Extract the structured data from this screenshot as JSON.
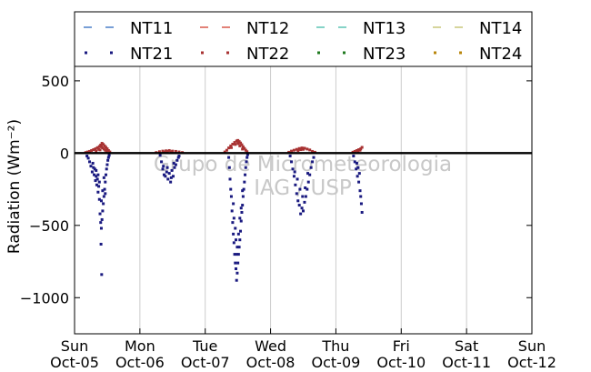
{
  "chart_data": {
    "type": "scatter",
    "title": "",
    "xlabel": "",
    "ylabel": "Radiation (Wm⁻²)",
    "ylim": [
      -1250,
      600
    ],
    "yticks": [
      500,
      0,
      -500,
      -1000
    ],
    "ytick_labels": [
      "500",
      "0",
      "−500",
      "−1000"
    ],
    "x_ticks": [
      {
        "top": "Sun",
        "bottom": "Oct-05"
      },
      {
        "top": "Mon",
        "bottom": "Oct-06"
      },
      {
        "top": "Tue",
        "bottom": "Oct-07"
      },
      {
        "top": "Wed",
        "bottom": "Oct-08"
      },
      {
        "top": "Thu",
        "bottom": "Oct-09"
      },
      {
        "top": "Fri",
        "bottom": "Oct-10"
      },
      {
        "top": "Sat",
        "bottom": "Oct-11"
      },
      {
        "top": "Sun",
        "bottom": "Oct-12"
      }
    ],
    "xlim_days": [
      0,
      7
    ],
    "grid": "vertical",
    "zero_line": true,
    "legend": {
      "placement": "top",
      "columns": 4,
      "entries": [
        {
          "name": "NT11",
          "marker": "dash",
          "color": "#4a7fc9"
        },
        {
          "name": "NT12",
          "marker": "dash",
          "color": "#d9584a"
        },
        {
          "name": "NT13",
          "marker": "dash",
          "color": "#5cc4b4"
        },
        {
          "name": "NT14",
          "marker": "dash",
          "color": "#c9c77a"
        },
        {
          "name": "NT21",
          "marker": "dot",
          "color": "#1a1a80"
        },
        {
          "name": "NT22",
          "marker": "dot",
          "color": "#a83232"
        },
        {
          "name": "NT23",
          "marker": "dot",
          "color": "#1f7a1f"
        },
        {
          "name": "NT24",
          "marker": "dot",
          "color": "#b8860b"
        }
      ]
    },
    "watermark": [
      "Grupo de Micrometeorologia",
      "IAG / USP"
    ],
    "series": [
      {
        "name": "NT21",
        "color": "#1a1a80",
        "points": [
          [
            0.19,
            -20
          ],
          [
            0.21,
            -35
          ],
          [
            0.23,
            -60
          ],
          [
            0.25,
            -90
          ],
          [
            0.27,
            -130
          ],
          [
            0.28,
            -70
          ],
          [
            0.3,
            -150
          ],
          [
            0.31,
            -110
          ],
          [
            0.32,
            -190
          ],
          [
            0.33,
            -160
          ],
          [
            0.34,
            -220
          ],
          [
            0.35,
            -180
          ],
          [
            0.36,
            -270
          ],
          [
            0.37,
            -230
          ],
          [
            0.38,
            -320
          ],
          [
            0.39,
            -420
          ],
          [
            0.4,
            -480
          ],
          [
            0.405,
            -630
          ],
          [
            0.41,
            -520
          ],
          [
            0.415,
            -840
          ],
          [
            0.42,
            -460
          ],
          [
            0.43,
            -400
          ],
          [
            0.44,
            -350
          ],
          [
            0.45,
            -300
          ],
          [
            0.46,
            -250
          ],
          [
            0.47,
            -200
          ],
          [
            0.48,
            -150
          ],
          [
            0.49,
            -110
          ],
          [
            0.5,
            -80
          ],
          [
            0.51,
            -50
          ],
          [
            0.52,
            -30
          ],
          [
            0.53,
            -15
          ],
          [
            0.45,
            -170
          ],
          [
            0.43,
            -260
          ],
          [
            0.38,
            -200
          ],
          [
            0.36,
            -150
          ],
          [
            0.33,
            -120
          ],
          [
            0.29,
            -100
          ],
          [
            0.41,
            -330
          ],
          [
            0.47,
            -280
          ],
          [
            1.31,
            -15
          ],
          [
            1.33,
            -60
          ],
          [
            1.35,
            -110
          ],
          [
            1.37,
            -150
          ],
          [
            1.39,
            -160
          ],
          [
            1.41,
            -130
          ],
          [
            1.43,
            -180
          ],
          [
            1.45,
            -140
          ],
          [
            1.47,
            -200
          ],
          [
            1.49,
            -120
          ],
          [
            1.51,
            -160
          ],
          [
            1.53,
            -100
          ],
          [
            1.55,
            -80
          ],
          [
            1.57,
            -50
          ],
          [
            1.59,
            -30
          ],
          [
            1.36,
            -90
          ],
          [
            1.42,
            -100
          ],
          [
            1.48,
            -170
          ],
          [
            1.52,
            -70
          ],
          [
            1.6,
            -20
          ],
          [
            2.36,
            -30
          ],
          [
            2.37,
            -100
          ],
          [
            2.38,
            -180
          ],
          [
            2.39,
            -250
          ],
          [
            2.4,
            -300
          ],
          [
            2.41,
            -400
          ],
          [
            2.42,
            -480
          ],
          [
            2.43,
            -560
          ],
          [
            2.44,
            -620
          ],
          [
            2.45,
            -700
          ],
          [
            2.46,
            -760
          ],
          [
            2.47,
            -800
          ],
          [
            2.48,
            -880
          ],
          [
            2.49,
            -830
          ],
          [
            2.5,
            -760
          ],
          [
            2.51,
            -700
          ],
          [
            2.52,
            -650
          ],
          [
            2.53,
            -600
          ],
          [
            2.54,
            -540
          ],
          [
            2.55,
            -470
          ],
          [
            2.56,
            -410
          ],
          [
            2.57,
            -360
          ],
          [
            2.58,
            -300
          ],
          [
            2.59,
            -250
          ],
          [
            2.6,
            -200
          ],
          [
            2.61,
            -150
          ],
          [
            2.62,
            -100
          ],
          [
            2.63,
            -60
          ],
          [
            2.64,
            -30
          ],
          [
            2.65,
            -10
          ],
          [
            2.44,
            -450
          ],
          [
            2.46,
            -520
          ],
          [
            2.47,
            -600
          ],
          [
            2.49,
            -650
          ],
          [
            2.51,
            -560
          ],
          [
            2.53,
            -450
          ],
          [
            2.55,
            -380
          ],
          [
            2.57,
            -260
          ],
          [
            2.43,
            -350
          ],
          [
            2.48,
            -700
          ],
          [
            3.3,
            -20
          ],
          [
            3.32,
            -60
          ],
          [
            3.34,
            -110
          ],
          [
            3.36,
            -160
          ],
          [
            3.38,
            -220
          ],
          [
            3.4,
            -280
          ],
          [
            3.42,
            -330
          ],
          [
            3.44,
            -360
          ],
          [
            3.46,
            -420
          ],
          [
            3.48,
            -380
          ],
          [
            3.5,
            -400
          ],
          [
            3.52,
            -340
          ],
          [
            3.54,
            -300
          ],
          [
            3.56,
            -250
          ],
          [
            3.58,
            -200
          ],
          [
            3.6,
            -150
          ],
          [
            3.62,
            -100
          ],
          [
            3.64,
            -60
          ],
          [
            3.66,
            -30
          ],
          [
            3.37,
            -130
          ],
          [
            3.41,
            -180
          ],
          [
            3.45,
            -250
          ],
          [
            3.49,
            -300
          ],
          [
            3.53,
            -240
          ],
          [
            3.57,
            -140
          ],
          [
            4.27,
            -20
          ],
          [
            4.29,
            -60
          ],
          [
            4.31,
            -110
          ],
          [
            4.33,
            -160
          ],
          [
            4.35,
            -200
          ],
          [
            4.37,
            -260
          ],
          [
            4.38,
            -300
          ],
          [
            4.39,
            -350
          ],
          [
            4.4,
            -410
          ],
          [
            4.36,
            -140
          ],
          [
            4.34,
            -100
          ],
          [
            4.32,
            -70
          ]
        ]
      },
      {
        "name": "NT22",
        "color": "#a83232",
        "points": [
          [
            0.17,
            4
          ],
          [
            0.2,
            8
          ],
          [
            0.23,
            12
          ],
          [
            0.26,
            18
          ],
          [
            0.29,
            24
          ],
          [
            0.32,
            30
          ],
          [
            0.35,
            38
          ],
          [
            0.38,
            46
          ],
          [
            0.4,
            56
          ],
          [
            0.42,
            68
          ],
          [
            0.44,
            60
          ],
          [
            0.46,
            50
          ],
          [
            0.48,
            40
          ],
          [
            0.5,
            30
          ],
          [
            0.52,
            18
          ],
          [
            0.54,
            8
          ],
          [
            0.41,
            44
          ],
          [
            0.43,
            36
          ],
          [
            0.45,
            28
          ],
          [
            0.39,
            22
          ],
          [
            0.37,
            26
          ],
          [
            0.47,
            20
          ],
          [
            0.33,
            14
          ],
          [
            0.49,
            12
          ],
          [
            1.25,
            4
          ],
          [
            1.3,
            10
          ],
          [
            1.35,
            14
          ],
          [
            1.4,
            16
          ],
          [
            1.45,
            18
          ],
          [
            1.5,
            14
          ],
          [
            1.55,
            12
          ],
          [
            1.6,
            8
          ],
          [
            1.65,
            4
          ],
          [
            1.42,
            12
          ],
          [
            1.48,
            10
          ],
          [
            1.38,
            8
          ],
          [
            2.3,
            8
          ],
          [
            2.33,
            20
          ],
          [
            2.36,
            36
          ],
          [
            2.39,
            50
          ],
          [
            2.42,
            62
          ],
          [
            2.45,
            74
          ],
          [
            2.48,
            84
          ],
          [
            2.5,
            88
          ],
          [
            2.52,
            80
          ],
          [
            2.54,
            70
          ],
          [
            2.56,
            58
          ],
          [
            2.58,
            44
          ],
          [
            2.6,
            32
          ],
          [
            2.62,
            20
          ],
          [
            2.64,
            10
          ],
          [
            2.46,
            60
          ],
          [
            2.5,
            66
          ],
          [
            2.53,
            50
          ],
          [
            2.4,
            38
          ],
          [
            2.57,
            28
          ],
          [
            3.28,
            6
          ],
          [
            3.32,
            14
          ],
          [
            3.36,
            20
          ],
          [
            3.4,
            26
          ],
          [
            3.44,
            32
          ],
          [
            3.48,
            36
          ],
          [
            3.52,
            34
          ],
          [
            3.56,
            28
          ],
          [
            3.6,
            22
          ],
          [
            3.64,
            12
          ],
          [
            3.68,
            6
          ],
          [
            3.46,
            24
          ],
          [
            3.5,
            26
          ],
          [
            3.42,
            18
          ],
          [
            4.26,
            6
          ],
          [
            4.29,
            12
          ],
          [
            4.32,
            18
          ],
          [
            4.35,
            24
          ],
          [
            4.38,
            30
          ],
          [
            4.4,
            40
          ],
          [
            4.37,
            20
          ],
          [
            4.34,
            14
          ]
        ]
      }
    ]
  }
}
